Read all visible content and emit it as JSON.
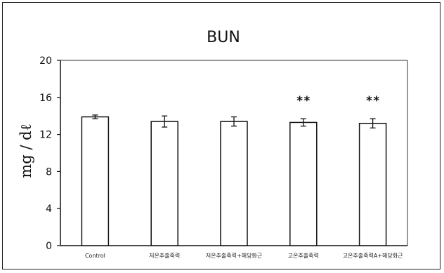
{
  "chart_data": {
    "type": "bar",
    "title": "BUN",
    "xlabel": "",
    "ylabel": "mg / dℓ",
    "ylim": [
      0,
      20
    ],
    "yticks": [
      0,
      4,
      8,
      12,
      16,
      20
    ],
    "categories": [
      "Control",
      "저온추출죽력",
      "저온추출죽력+해당화근",
      "고온추출죽력",
      "고온추출죽력A+해당화근"
    ],
    "values": [
      13.9,
      13.4,
      13.4,
      13.3,
      13.2
    ],
    "errors": [
      0.2,
      0.6,
      0.5,
      0.4,
      0.5
    ],
    "annotations": [
      "",
      "",
      "",
      "**",
      "**"
    ],
    "grid": false,
    "legend": "none"
  },
  "colors": {
    "bar_fill": "#ffffff",
    "bar_stroke": "#111111",
    "axis": "#111111",
    "plot_border": "#333333"
  }
}
